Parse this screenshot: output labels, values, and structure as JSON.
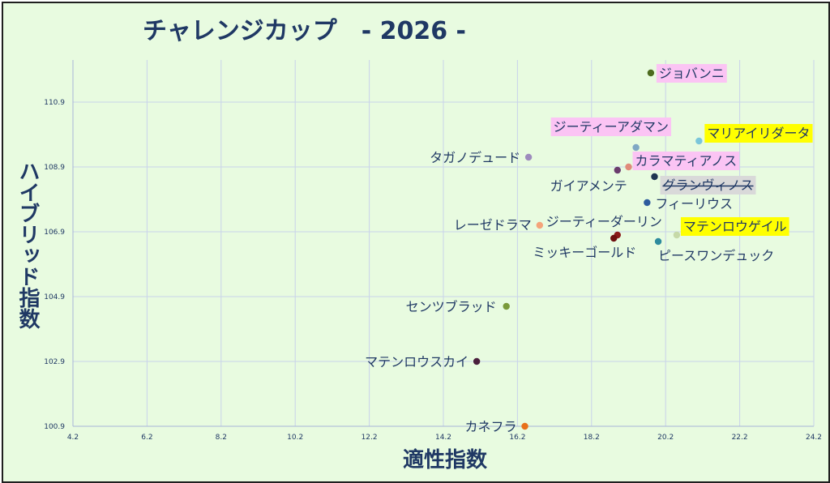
{
  "chart_data": {
    "type": "scatter",
    "title": "チャレンジカップ　- 2026 -",
    "xlabel": "適性指数",
    "ylabel": "ハイブリッド指数",
    "xlim": [
      4.2,
      24.2
    ],
    "ylim": [
      100.9,
      112.2
    ],
    "xticks": [
      "4.2",
      "6.2",
      "8.2",
      "10.2",
      "12.2",
      "14.2",
      "16.2",
      "18.2",
      "20.2",
      "22.2",
      "24.2"
    ],
    "yticks": [
      "100.9",
      "102.9",
      "104.9",
      "106.9",
      "108.9",
      "110.9"
    ],
    "grid": true,
    "points": [
      {
        "label": "ジョバンニ",
        "x": 19.8,
        "y": 111.8,
        "color": "#4d6b1f",
        "highlight": "#fbc4f4",
        "strike": false
      },
      {
        "label": "ジーティーアダマン",
        "x": 19.4,
        "y": 109.5,
        "color": "#7fa7c4",
        "highlight": "#fbc4f4",
        "strike": false
      },
      {
        "label": "マリアイリダータ",
        "x": 21.1,
        "y": 109.7,
        "color": "#7bc6da",
        "highlight": "#ffff00",
        "strike": false
      },
      {
        "label": "タガノデュード",
        "x": 16.5,
        "y": 109.2,
        "color": "#9e8bbd",
        "highlight": "",
        "strike": false
      },
      {
        "label": "カラマティアノス",
        "x": 19.2,
        "y": 108.9,
        "color": "#e08a7a",
        "highlight": "#fbc4f4",
        "strike": false
      },
      {
        "label": "ガイアメンテ",
        "x": 18.9,
        "y": 108.8,
        "color": "#6b3d6e",
        "highlight": "",
        "strike": false
      },
      {
        "label": "グランヴィノス",
        "x": 19.9,
        "y": 108.6,
        "color": "#1f3552",
        "highlight": "#d9d9d9",
        "strike": true
      },
      {
        "label": "フィーリウス",
        "x": 19.7,
        "y": 107.8,
        "color": "#2e5c9e",
        "highlight": "",
        "strike": false
      },
      {
        "label": "レーゼドラマ",
        "x": 16.8,
        "y": 107.1,
        "color": "#f4a47a",
        "highlight": "",
        "strike": false
      },
      {
        "label": "ジーティーダーリン",
        "x": 18.9,
        "y": 106.8,
        "color": "#8b1a1a",
        "highlight": "",
        "strike": false
      },
      {
        "label": "ミッキーゴールド",
        "x": 18.8,
        "y": 106.7,
        "color": "#6e1010",
        "highlight": "",
        "strike": false
      },
      {
        "label": "マテンロウゲイル",
        "x": 20.5,
        "y": 106.8,
        "color": "#c6d9a8",
        "highlight": "#ffff00",
        "strike": false
      },
      {
        "label": "ピースワンデュック",
        "x": 20.0,
        "y": 106.6,
        "color": "#2e8b9e",
        "highlight": "",
        "strike": false
      },
      {
        "label": "センツブラッド",
        "x": 15.9,
        "y": 104.6,
        "color": "#7a9a3a",
        "highlight": "",
        "strike": false
      },
      {
        "label": "マテンロウスカイ",
        "x": 15.1,
        "y": 102.9,
        "color": "#4a1f3d",
        "highlight": "",
        "strike": false
      },
      {
        "label": "カネフラ",
        "x": 16.4,
        "y": 100.9,
        "color": "#e8701a",
        "highlight": "",
        "strike": false
      }
    ]
  }
}
